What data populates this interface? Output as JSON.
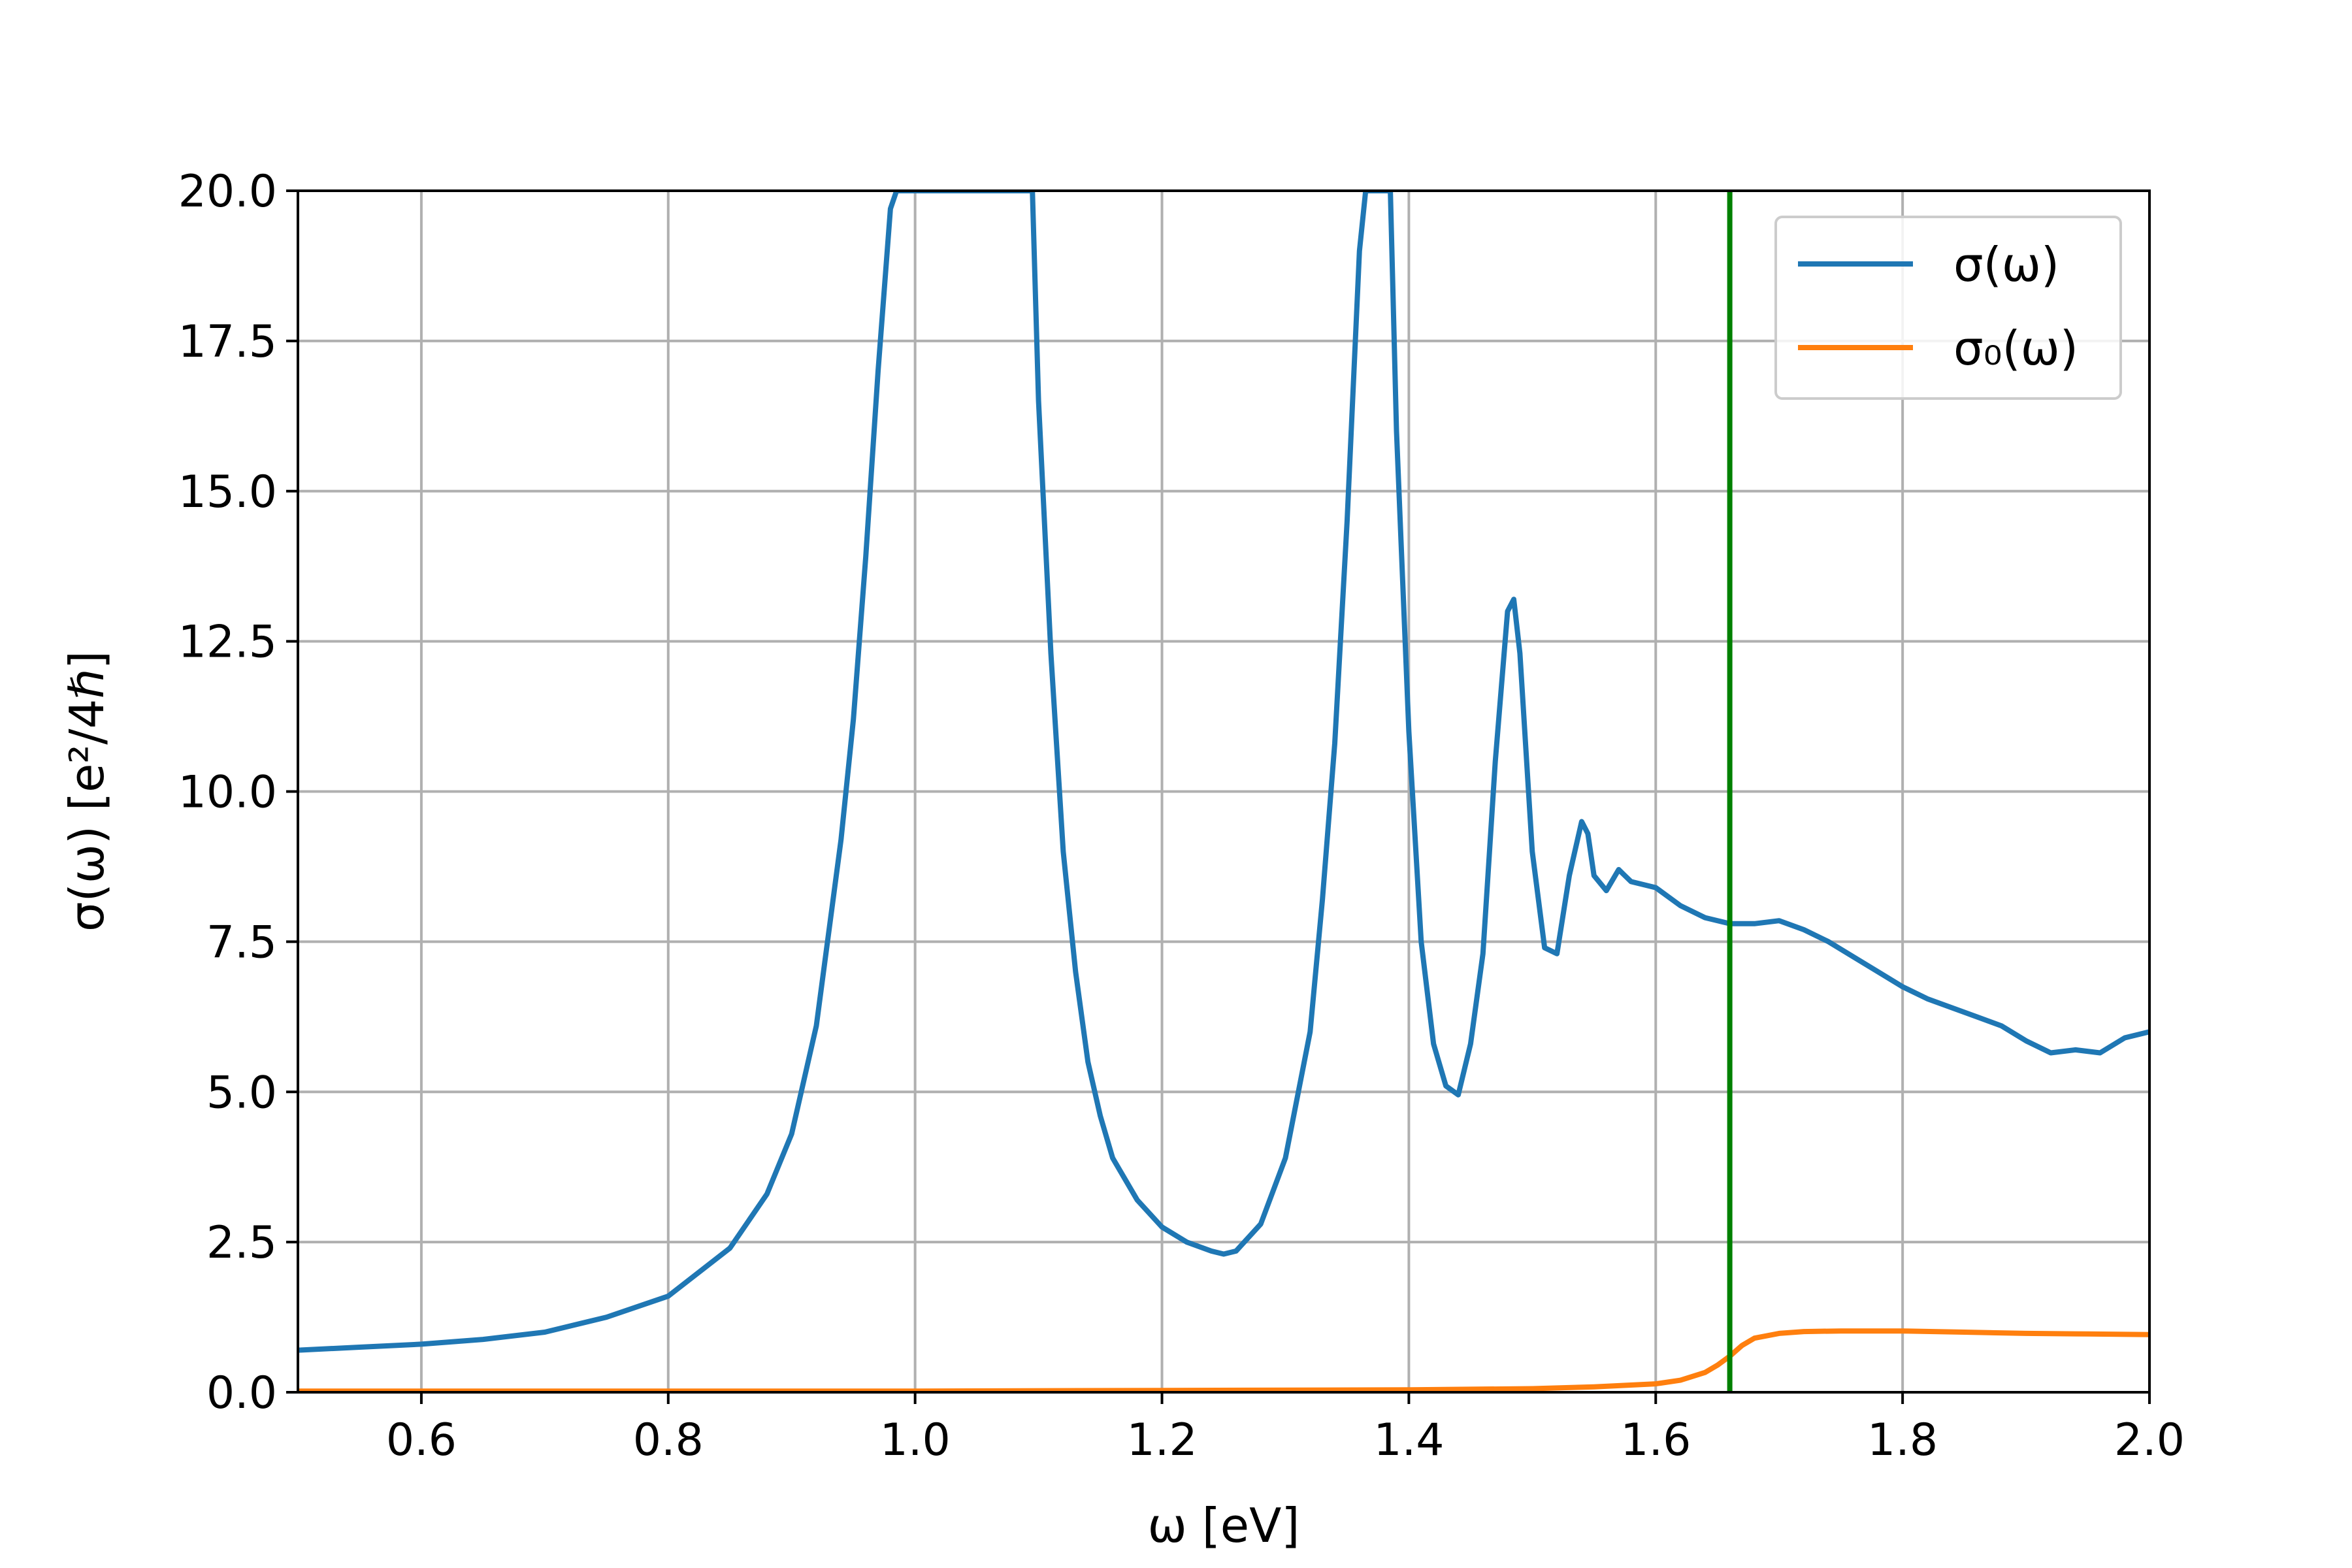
{
  "chart_data": {
    "type": "line",
    "xlabel": "ω [eV]",
    "ylabel": "σ(ω) [e²/4ℏ]",
    "xlim": [
      0.5,
      2.0
    ],
    "ylim": [
      0.0,
      20.0
    ],
    "xticks": [
      0.6,
      0.8,
      1.0,
      1.2,
      1.4,
      1.6,
      1.8,
      2.0
    ],
    "yticks": [
      0.0,
      2.5,
      5.0,
      7.5,
      10.0,
      12.5,
      15.0,
      17.5,
      20.0
    ],
    "x_tick_labels": [
      "0.6",
      "0.8",
      "1.0",
      "1.2",
      "1.4",
      "1.6",
      "1.8",
      "2.0"
    ],
    "y_tick_labels": [
      "0.0",
      "2.5",
      "5.0",
      "7.5",
      "10.0",
      "12.5",
      "15.0",
      "17.5",
      "20.0"
    ],
    "grid": true,
    "legend_position": "top-right",
    "vline": {
      "x": 1.66,
      "color": "#008000"
    },
    "series": [
      {
        "name": "σ(ω)",
        "color": "#1f77b4",
        "x": [
          0.5,
          0.55,
          0.6,
          0.65,
          0.7,
          0.75,
          0.8,
          0.85,
          0.88,
          0.9,
          0.92,
          0.94,
          0.95,
          0.96,
          0.97,
          0.98,
          0.985,
          1.095,
          1.1,
          1.11,
          1.12,
          1.13,
          1.14,
          1.15,
          1.16,
          1.18,
          1.2,
          1.22,
          1.24,
          1.25,
          1.26,
          1.28,
          1.3,
          1.32,
          1.33,
          1.34,
          1.35,
          1.36,
          1.365,
          1.385,
          1.39,
          1.4,
          1.41,
          1.42,
          1.43,
          1.44,
          1.45,
          1.46,
          1.47,
          1.48,
          1.485,
          1.49,
          1.5,
          1.51,
          1.52,
          1.53,
          1.54,
          1.545,
          1.55,
          1.56,
          1.57,
          1.575,
          1.58,
          1.6,
          1.62,
          1.64,
          1.66,
          1.68,
          1.7,
          1.72,
          1.74,
          1.76,
          1.78,
          1.8,
          1.82,
          1.84,
          1.86,
          1.88,
          1.9,
          1.92,
          1.94,
          1.96,
          1.98,
          2.0
        ],
        "y": [
          0.7,
          0.75,
          0.8,
          0.88,
          1.0,
          1.25,
          1.6,
          2.4,
          3.3,
          4.3,
          6.1,
          9.2,
          11.2,
          13.9,
          17.0,
          19.7,
          20.0,
          20.0,
          16.5,
          12.3,
          9.0,
          7.0,
          5.5,
          4.6,
          3.9,
          3.2,
          2.75,
          2.5,
          2.35,
          2.3,
          2.35,
          2.8,
          3.9,
          6.0,
          8.2,
          10.8,
          14.5,
          19.0,
          20.0,
          20.0,
          16.0,
          11.0,
          7.5,
          5.8,
          5.1,
          4.95,
          5.8,
          7.3,
          10.5,
          13.0,
          13.2,
          12.3,
          9.0,
          7.4,
          7.3,
          8.6,
          9.5,
          9.3,
          8.6,
          8.35,
          8.7,
          8.6,
          8.5,
          8.4,
          8.1,
          7.9,
          7.8,
          7.8,
          7.85,
          7.7,
          7.5,
          7.25,
          7.0,
          6.75,
          6.55,
          6.4,
          6.25,
          6.1,
          5.85,
          5.65,
          5.7,
          5.65,
          5.9,
          6.0
        ]
      },
      {
        "name": "σ₀(ω)",
        "color": "#ff7f0e",
        "x": [
          0.5,
          0.8,
          1.0,
          1.2,
          1.4,
          1.5,
          1.55,
          1.6,
          1.62,
          1.64,
          1.65,
          1.66,
          1.67,
          1.68,
          1.7,
          1.72,
          1.75,
          1.8,
          1.85,
          1.9,
          1.95,
          2.0
        ],
        "y": [
          0.02,
          0.02,
          0.02,
          0.03,
          0.04,
          0.06,
          0.09,
          0.14,
          0.2,
          0.33,
          0.45,
          0.6,
          0.78,
          0.9,
          0.98,
          1.01,
          1.02,
          1.02,
          1.0,
          0.98,
          0.97,
          0.96
        ]
      }
    ]
  }
}
